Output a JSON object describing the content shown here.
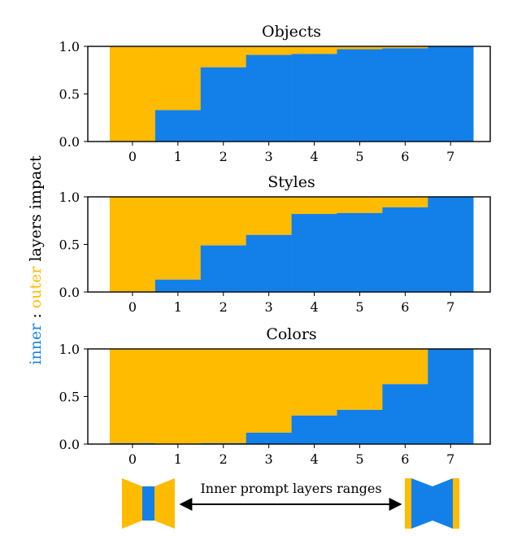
{
  "colors": {
    "inner": "#1380E9",
    "outer": "#FFBB00",
    "axis": "#000000"
  },
  "figure": {
    "ylabel_inner": "inner",
    "ylabel_sep": " : ",
    "ylabel_outer": "outer",
    "ylabel_rest": " layers impact",
    "arrow_label": "Inner prompt layers ranges",
    "left_icon": "narrow-inner-layers-icon",
    "right_icon": "wide-inner-layers-icon"
  },
  "chart_data": [
    {
      "type": "bar",
      "stacked": true,
      "title": "Objects",
      "categories": [
        "0",
        "1",
        "2",
        "3",
        "4",
        "5",
        "6",
        "7"
      ],
      "series": [
        {
          "name": "inner",
          "values": [
            0.0,
            0.33,
            0.78,
            0.91,
            0.92,
            0.97,
            0.98,
            1.0
          ]
        },
        {
          "name": "outer",
          "values": [
            1.0,
            0.67,
            0.22,
            0.09,
            0.08,
            0.03,
            0.02,
            0.0
          ]
        }
      ],
      "ylim": [
        0,
        1
      ],
      "yticks": [
        "0.0",
        "0.5",
        "1.0"
      ],
      "grid": false
    },
    {
      "type": "bar",
      "stacked": true,
      "title": "Styles",
      "categories": [
        "0",
        "1",
        "2",
        "3",
        "4",
        "5",
        "6",
        "7"
      ],
      "series": [
        {
          "name": "inner",
          "values": [
            0.0,
            0.13,
            0.49,
            0.6,
            0.82,
            0.83,
            0.89,
            1.0
          ]
        },
        {
          "name": "outer",
          "values": [
            1.0,
            0.87,
            0.51,
            0.4,
            0.18,
            0.17,
            0.11,
            0.0
          ]
        }
      ],
      "ylim": [
        0,
        1
      ],
      "yticks": [
        "0.0",
        "0.5",
        "1.0"
      ],
      "grid": false
    },
    {
      "type": "bar",
      "stacked": true,
      "title": "Colors",
      "categories": [
        "0",
        "1",
        "2",
        "3",
        "4",
        "5",
        "6",
        "7"
      ],
      "series": [
        {
          "name": "inner",
          "values": [
            0.01,
            0.0,
            0.01,
            0.12,
            0.3,
            0.36,
            0.63,
            1.0
          ]
        },
        {
          "name": "outer",
          "values": [
            0.99,
            1.0,
            0.99,
            0.88,
            0.7,
            0.64,
            0.37,
            0.0
          ]
        }
      ],
      "ylim": [
        0,
        1
      ],
      "yticks": [
        "0.0",
        "0.5",
        "1.0"
      ],
      "grid": false
    }
  ]
}
